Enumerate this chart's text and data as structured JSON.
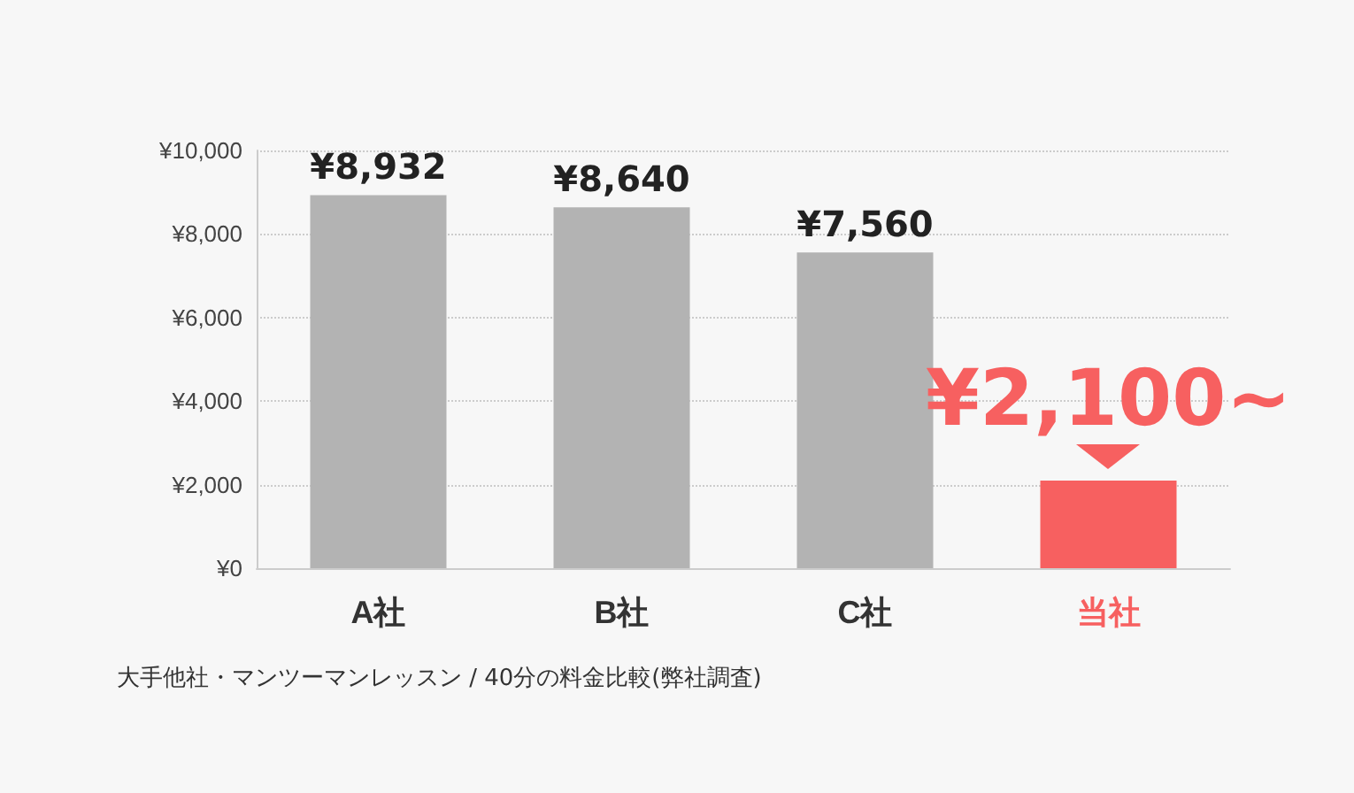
{
  "chart_data": {
    "type": "bar",
    "categories": [
      "A社",
      "B社",
      "C社",
      "当社"
    ],
    "values": [
      8932,
      8640,
      7560,
      2100
    ],
    "colors": [
      "#b3b3b3",
      "#b3b3b3",
      "#b3b3b3",
      "#f76060"
    ],
    "value_labels": [
      "¥8,932",
      "¥8,640",
      "¥7,560",
      "¥2,100~"
    ],
    "ylim": [
      0,
      10000
    ],
    "yticks": [
      {
        "value": 0,
        "label": "¥0"
      },
      {
        "value": 2000,
        "label": "¥2,000"
      },
      {
        "value": 4000,
        "label": "¥4,000"
      },
      {
        "value": 6000,
        "label": "¥6,000"
      },
      {
        "value": 8000,
        "label": "¥8,000"
      },
      {
        "value": 10000,
        "label": "¥10,000"
      }
    ],
    "grid": "y",
    "annotations": [
      "大手他社・マンツーマンレッスン / 40分の料金比較(弊社調査)"
    ]
  }
}
